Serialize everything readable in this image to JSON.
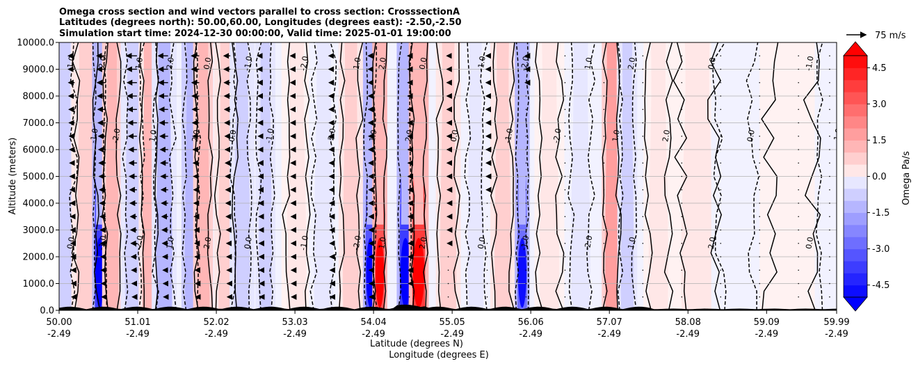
{
  "chart_data": {
    "type": "heatmap",
    "title_lines": [
      "Omega cross section and wind vectors parallel to cross section: CrosssectionA",
      "Latitudes (degrees north): 50.00,60.00, Longitudes (degrees east): -2.50,-2.50",
      "Simulation start time: 2024-12-30 00:00:00, Valid time: 2025-01-01 19:00:00"
    ],
    "ylabel": "Altitude (meters)",
    "xlabel_lines": [
      "Latitude (degrees N)",
      "Longitude (degrees E)"
    ],
    "ylim": [
      0,
      10000
    ],
    "yticks": [
      "0.0",
      "1000.0",
      "2000.0",
      "3000.0",
      "4000.0",
      "5000.0",
      "6000.0",
      "7000.0",
      "8000.0",
      "9000.0",
      "10000.0"
    ],
    "yvals": [
      0,
      1000,
      2000,
      3000,
      4000,
      5000,
      6000,
      7000,
      8000,
      9000,
      10000
    ],
    "xlim": [
      50.0,
      59.99
    ],
    "xticks": [
      {
        "lat": "50.00",
        "lon": "-2.49",
        "x": 50.0
      },
      {
        "lat": "51.01",
        "lon": "-2.49",
        "x": 51.01
      },
      {
        "lat": "52.02",
        "lon": "-2.49",
        "x": 52.02
      },
      {
        "lat": "53.03",
        "lon": "-2.49",
        "x": 53.03
      },
      {
        "lat": "54.04",
        "lon": "-2.49",
        "x": 54.04
      },
      {
        "lat": "55.05",
        "lon": "-2.49",
        "x": 55.05
      },
      {
        "lat": "56.06",
        "lon": "-2.49",
        "x": 56.06
      },
      {
        "lat": "57.07",
        "lon": "-2.49",
        "x": 57.07
      },
      {
        "lat": "58.08",
        "lon": "-2.49",
        "x": 58.08
      },
      {
        "lat": "59.09",
        "lon": "-2.49",
        "x": 59.09
      },
      {
        "lat": "59.99",
        "lon": "-2.49",
        "x": 59.99
      }
    ],
    "colorbar": {
      "label": "Omega Pa/s",
      "range": [
        -5,
        5
      ],
      "ticks": [
        "-4.5",
        "-3.0",
        "-1.5",
        "0.0",
        "1.5",
        "3.0",
        "4.5"
      ],
      "tick_values": [
        -4.5,
        -3.0,
        -1.5,
        0.0,
        1.5,
        3.0,
        4.5
      ],
      "extend": "both"
    },
    "quiver_key": {
      "label": "75 m/s",
      "value": 75
    },
    "contour_label": "0.0",
    "contour_labels_other": [
      "1.0",
      "-1.0",
      "2.0",
      "-2.0"
    ],
    "omega_bands": [
      {
        "lat": 50.05,
        "w": 0.12,
        "v": -1.2
      },
      {
        "lat": 50.35,
        "w": 0.12,
        "v": 1.0
      },
      {
        "lat": 50.52,
        "w": 0.06,
        "v": -6.0
      },
      {
        "lat": 50.68,
        "w": 0.08,
        "v": 2.5
      },
      {
        "lat": 50.95,
        "w": 0.1,
        "v": -1.5
      },
      {
        "lat": 51.15,
        "w": 0.08,
        "v": 2.0
      },
      {
        "lat": 51.35,
        "w": 0.1,
        "v": -1.8
      },
      {
        "lat": 51.7,
        "w": 0.08,
        "v": -2.5
      },
      {
        "lat": 51.85,
        "w": 0.08,
        "v": 2.2
      },
      {
        "lat": 52.15,
        "w": 0.1,
        "v": 1.4
      },
      {
        "lat": 52.35,
        "w": 0.1,
        "v": -1.6
      },
      {
        "lat": 52.65,
        "w": 0.08,
        "v": -1.2
      },
      {
        "lat": 53.05,
        "w": 0.12,
        "v": 0.8
      },
      {
        "lat": 53.4,
        "w": 0.12,
        "v": -0.8
      },
      {
        "lat": 53.75,
        "w": 0.1,
        "v": 1.6
      },
      {
        "lat": 54.0,
        "w": 0.06,
        "v": -5.5
      },
      {
        "lat": 54.12,
        "w": 0.06,
        "v": 5.5
      },
      {
        "lat": 54.45,
        "w": 0.07,
        "v": -6.0
      },
      {
        "lat": 54.62,
        "w": 0.08,
        "v": 6.0
      },
      {
        "lat": 55.0,
        "w": 0.1,
        "v": 1.4
      },
      {
        "lat": 55.35,
        "w": 0.1,
        "v": -0.8
      },
      {
        "lat": 55.7,
        "w": 0.1,
        "v": 1.2
      },
      {
        "lat": 55.95,
        "w": 0.06,
        "v": -5.0
      },
      {
        "lat": 56.3,
        "w": 0.12,
        "v": 0.6
      },
      {
        "lat": 56.7,
        "w": 0.12,
        "v": -0.7
      },
      {
        "lat": 57.1,
        "w": 0.08,
        "v": 3.0
      },
      {
        "lat": 57.3,
        "w": 0.08,
        "v": -1.5
      },
      {
        "lat": 57.7,
        "w": 0.12,
        "v": 0.8
      },
      {
        "lat": 58.2,
        "w": 0.2,
        "v": 0.5
      },
      {
        "lat": 58.7,
        "w": 0.2,
        "v": -0.3
      },
      {
        "lat": 59.4,
        "w": 0.25,
        "v": 0.3
      },
      {
        "lat": 59.9,
        "w": 0.12,
        "v": -0.4
      }
    ],
    "wind_profile": [
      {
        "lat": 50.2,
        "speed": -25
      },
      {
        "lat": 50.6,
        "speed": -35
      },
      {
        "lat": 51.0,
        "speed": -40
      },
      {
        "lat": 51.4,
        "speed": -38
      },
      {
        "lat": 51.8,
        "speed": -30
      },
      {
        "lat": 52.2,
        "speed": -25
      },
      {
        "lat": 52.6,
        "speed": -15
      },
      {
        "lat": 53.0,
        "speed": -8
      },
      {
        "lat": 53.5,
        "speed": -10
      },
      {
        "lat": 54.0,
        "speed": -8
      },
      {
        "lat": 54.5,
        "speed": -6
      },
      {
        "lat": 55.0,
        "speed": -5
      },
      {
        "lat": 55.5,
        "speed": -4
      },
      {
        "lat": 56.0,
        "speed": -3
      },
      {
        "lat": 56.5,
        "speed": -2
      },
      {
        "lat": 57.0,
        "speed": -1
      },
      {
        "lat": 57.5,
        "speed": 0
      },
      {
        "lat": 58.0,
        "speed": 0
      },
      {
        "lat": 58.5,
        "speed": 0
      },
      {
        "lat": 59.0,
        "speed": 0
      },
      {
        "lat": 59.5,
        "speed": 0
      },
      {
        "lat": 59.9,
        "speed": 0
      }
    ],
    "grid": true
  }
}
